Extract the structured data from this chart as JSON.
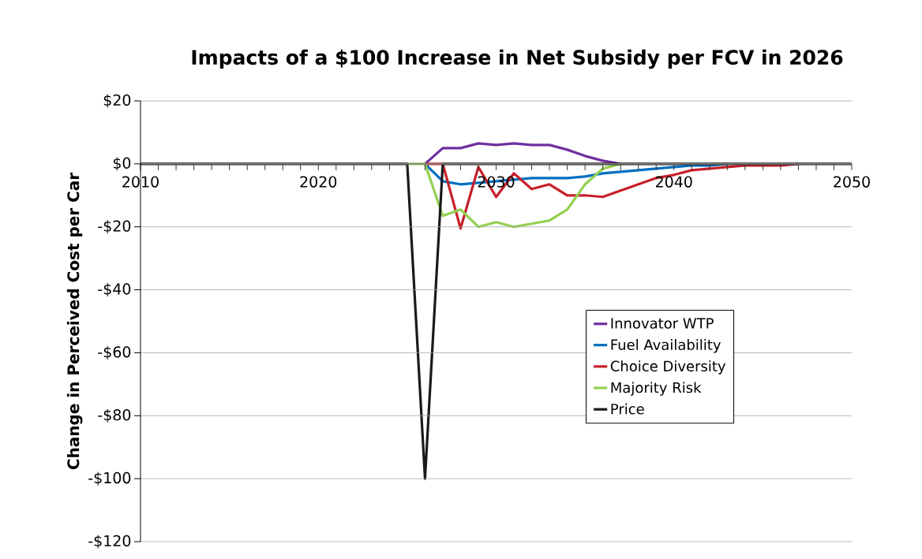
{
  "chart_data": {
    "type": "line",
    "title": "Impacts of a $100 Increase in Net Subsidy per FCV in 2026",
    "ylabel": "Change in Perceived Cost per Car",
    "x": [
      2010,
      2011,
      2012,
      2013,
      2014,
      2015,
      2016,
      2017,
      2018,
      2019,
      2020,
      2021,
      2022,
      2023,
      2024,
      2025,
      2026,
      2027,
      2028,
      2029,
      2030,
      2031,
      2032,
      2033,
      2034,
      2035,
      2036,
      2037,
      2038,
      2039,
      2040,
      2041,
      2042,
      2043,
      2044,
      2045,
      2046,
      2047,
      2048,
      2049,
      2050
    ],
    "series": [
      {
        "name": "Innovator WTP",
        "color": "#7030a0",
        "values": [
          null,
          null,
          null,
          null,
          null,
          null,
          null,
          null,
          null,
          null,
          null,
          null,
          null,
          null,
          null,
          null,
          0,
          5,
          5,
          6.5,
          6,
          6.5,
          6,
          6,
          4.5,
          2.5,
          1,
          0,
          null,
          null,
          null,
          null,
          null,
          null,
          null,
          null,
          null,
          null,
          null,
          null,
          null
        ]
      },
      {
        "name": "Fuel Availability",
        "color": "#0070c0",
        "values": [
          null,
          null,
          null,
          null,
          null,
          null,
          null,
          null,
          null,
          null,
          null,
          null,
          null,
          null,
          null,
          null,
          0,
          -5.5,
          -6.5,
          -6,
          -5.5,
          -5,
          -4.5,
          -4.5,
          -4.5,
          -4,
          -3,
          -2.5,
          -2,
          -1.5,
          -1,
          -0.5,
          -0.5,
          0,
          null,
          null,
          null,
          null,
          null,
          null,
          null
        ]
      },
      {
        "name": "Choice  Diversity",
        "color": "#c8202a",
        "values": [
          null,
          null,
          null,
          null,
          null,
          null,
          null,
          null,
          null,
          null,
          null,
          null,
          null,
          null,
          null,
          null,
          0,
          0,
          -20.5,
          -1,
          -10.5,
          -3,
          -8,
          -6.5,
          -10,
          -10,
          -10.5,
          -8.5,
          -6.5,
          -4.5,
          -3.5,
          -2,
          -1.5,
          -1,
          -0.5,
          -0.5,
          -0.5,
          0,
          null,
          null,
          null
        ]
      },
      {
        "name": "Majority Risk",
        "color": "#92d050",
        "values": [
          null,
          null,
          null,
          null,
          null,
          null,
          null,
          null,
          null,
          null,
          null,
          null,
          null,
          null,
          null,
          0,
          0,
          -16.5,
          -14.5,
          -20,
          -18.5,
          -20,
          -19,
          -18,
          -14.5,
          -6.5,
          -1.5,
          0,
          null,
          null,
          null,
          null,
          null,
          null,
          null,
          null,
          null,
          null,
          null,
          null,
          null
        ]
      },
      {
        "name": "Price",
        "color": "#1a1a1a",
        "values": [
          0,
          0,
          0,
          0,
          0,
          0,
          0,
          0,
          0,
          0,
          0,
          0,
          0,
          0,
          0,
          0,
          -100,
          0,
          0,
          0,
          0,
          0,
          0,
          0,
          0,
          0,
          0,
          0,
          0,
          0,
          0,
          0,
          0,
          0,
          0,
          0,
          0,
          0,
          0,
          0,
          0
        ]
      }
    ],
    "xlim": [
      2010,
      2050
    ],
    "xticks": [
      2010,
      {
        "value": 2011,
        "label": null
      },
      {
        "value": 2012,
        "label": null
      },
      {
        "value": 2013,
        "label": null
      },
      {
        "value": 2014,
        "label": null
      },
      {
        "value": 2015,
        "label": null
      },
      {
        "value": 2016,
        "label": null
      },
      {
        "value": 2017,
        "label": null
      },
      {
        "value": 2018,
        "label": null
      },
      {
        "value": 2019,
        "label": null
      },
      2020,
      {
        "value": 2021,
        "label": null
      },
      {
        "value": 2022,
        "label": null
      },
      {
        "value": 2023,
        "label": null
      },
      {
        "value": 2024,
        "label": null
      },
      {
        "value": 2025,
        "label": null
      },
      {
        "value": 2026,
        "label": null
      },
      {
        "value": 2027,
        "label": null
      },
      {
        "value": 2028,
        "label": null
      },
      {
        "value": 2029,
        "label": null
      },
      2030,
      {
        "value": 2031,
        "label": null
      },
      {
        "value": 2032,
        "label": null
      },
      {
        "value": 2033,
        "label": null
      },
      {
        "value": 2034,
        "label": null
      },
      {
        "value": 2035,
        "label": null
      },
      {
        "value": 2036,
        "label": null
      },
      {
        "value": 2037,
        "label": null
      },
      {
        "value": 2038,
        "label": null
      },
      {
        "value": 2039,
        "label": null
      },
      2040,
      {
        "value": 2041,
        "label": null
      },
      {
        "value": 2042,
        "label": null
      },
      {
        "value": 2043,
        "label": null
      },
      {
        "value": 2044,
        "label": null
      },
      {
        "value": 2045,
        "label": null
      },
      {
        "value": 2046,
        "label": null
      },
      {
        "value": 2047,
        "label": null
      },
      {
        "value": 2048,
        "label": null
      },
      {
        "value": 2049,
        "label": null
      },
      2050
    ],
    "ylim": [
      -120,
      20
    ],
    "yticks": [
      {
        "value": -120,
        "label": "-$120"
      },
      {
        "value": -100,
        "label": "-$100"
      },
      {
        "value": -80,
        "label": "-$80"
      },
      {
        "value": -60,
        "label": "-$60"
      },
      {
        "value": -40,
        "label": "-$40"
      },
      {
        "value": -20,
        "label": "-$20"
      },
      {
        "value": 0,
        "label": "$0"
      },
      {
        "value": 20,
        "label": "$20"
      }
    ],
    "grid": "y",
    "legend": "right",
    "marker": "none",
    "line_style": "solid"
  }
}
